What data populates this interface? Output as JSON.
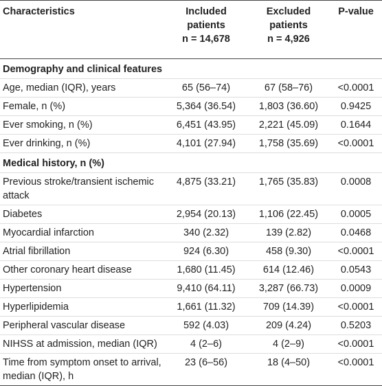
{
  "header": [
    "Characteristics",
    {
      "title": "Included patients",
      "n": "n = 14,678"
    },
    {
      "title": "Excluded patients",
      "n": "n = 4,926"
    },
    "P-value"
  ],
  "rows": [
    [
      "Demography and clinical features"
    ],
    [
      "Age, median (IQR), years",
      "65 (56–74)",
      "67 (58–76)",
      "<0.0001"
    ],
    [
      "Female, n (%)",
      "5,364 (36.54)",
      "1,803 (36.60)",
      "0.9425"
    ],
    [
      "Ever smoking, n (%)",
      "6,451 (43.95)",
      "2,221 (45.09)",
      "0.1644"
    ],
    [
      "Ever drinking, n (%)",
      "4,101 (27.94)",
      "1,758 (35.69)",
      "<0.0001"
    ],
    [
      "Medical history, n (%)"
    ],
    [
      "Previous stroke/transient ischemic attack",
      "4,875 (33.21)",
      "1,765 (35.83)",
      "0.0008"
    ],
    [
      "Diabetes",
      "2,954 (20.13)",
      "1,106 (22.45)",
      "0.0005"
    ],
    [
      "Myocardial infarction",
      "340 (2.32)",
      "139 (2.82)",
      "0.0468"
    ],
    [
      "Atrial fibrillation",
      "924 (6.30)",
      "458 (9.30)",
      "<0.0001"
    ],
    [
      "Other coronary heart disease",
      "1,680 (11.45)",
      "614 (12.46)",
      "0.0543"
    ],
    [
      "Hypertension",
      "9,410 (64.11)",
      "3,287 (66.73)",
      "0.0009"
    ],
    [
      "Hyperlipidemia",
      "1,661 (11.32)",
      "709 (14.39)",
      "<0.0001"
    ],
    [
      "Peripheral vascular disease",
      "592 (4.03)",
      "209 (4.24)",
      "0.5203"
    ],
    [
      "NIHSS at admission, median (IQR)",
      "4 (2–6)",
      "4 (2–9)",
      "<0.0001"
    ],
    [
      "Time from symptom onset to arrival, median (IQR), h",
      "23 (6–56)",
      "18 (4–50)",
      "<0.0001"
    ]
  ]
}
